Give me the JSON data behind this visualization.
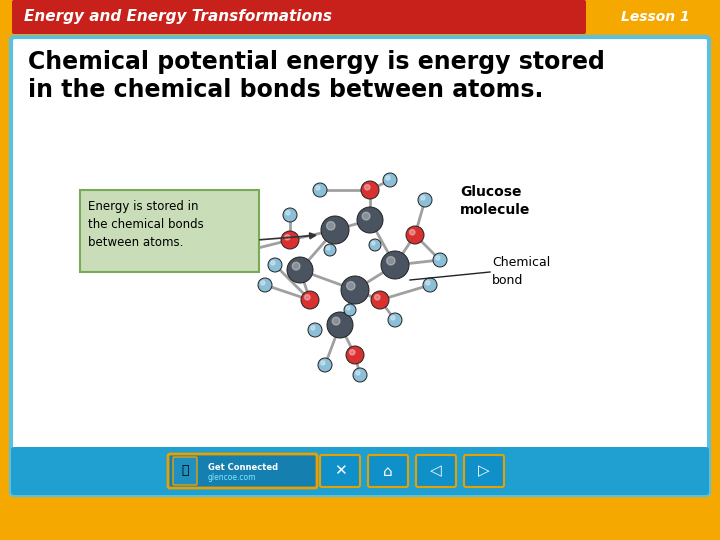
{
  "title_text": "Energy and Energy Transformations",
  "lesson_text": "Lesson 1",
  "main_text_line1": "Chemical potential energy is energy stored",
  "main_text_line2": "in the chemical bonds between atoms.",
  "callout_text": "Energy is stored in\nthe chemical bonds\nbetween atoms.",
  "label_chemical_bond": "Chemical\nbond",
  "label_glucose": "Glucose\nmolecule",
  "outer_bg_color": "#F5A800",
  "inner_bg_color": "#FFFFFF",
  "inner_border_color": "#5BBFDE",
  "header_bg_color": "#C8201A",
  "header_text_color": "#FFFFFF",
  "lesson_bg_color": "#F5A800",
  "lesson_text_color": "#FFFFFF",
  "main_text_color": "#000000",
  "callout_bg_color": "#C8DDB8",
  "callout_border_color": "#7AAA55",
  "callout_text_color": "#000000",
  "label_text_color": "#000000",
  "bottom_bar_color": "#1FA0D0",
  "title_fontsize": 11,
  "lesson_fontsize": 10,
  "main_fontsize": 17,
  "callout_fontsize": 8.5,
  "label_fontsize": 9,
  "glucose_fontsize": 10,
  "C_color": "#4A5460",
  "O_color": "#D93030",
  "H_color": "#8BBFD8",
  "bond_color": "#A0A0A0"
}
